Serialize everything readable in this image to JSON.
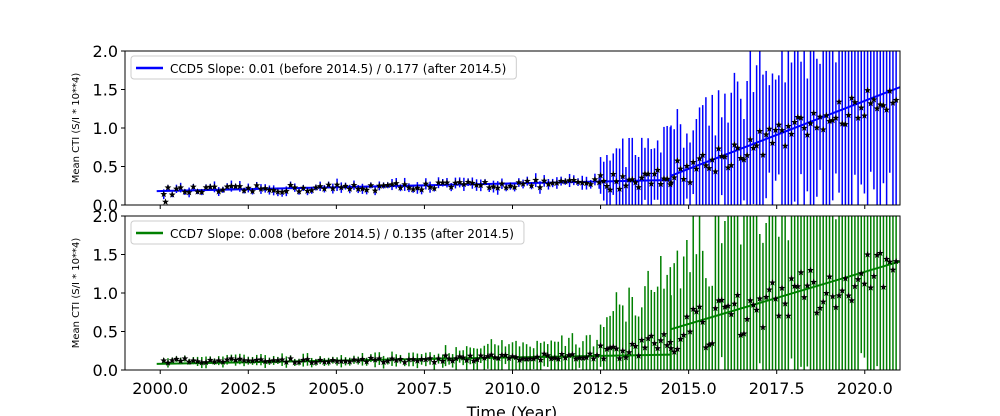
{
  "chart_data": [
    {
      "type": "scatter",
      "ylabel": "Mean CTI (S/I * 10**4)",
      "xlabel": "",
      "xlim": [
        1999.0,
        2021.0
      ],
      "ylim": [
        0.0,
        2.0
      ],
      "x_ticks": [
        "2000.0",
        "2002.5",
        "2005.0",
        "2007.5",
        "2010.0",
        "2012.5",
        "2015.0",
        "2017.5",
        "2020.0"
      ],
      "y_ticks": [
        "0.0",
        "0.5",
        "1.0",
        "1.5",
        "2.0"
      ],
      "show_x_tick_labels": false,
      "legend": {
        "label": "CCD5 Slope: 0.01 (before 2014.5) / 0.177 (after 2014.5)",
        "placement": "upper-left"
      },
      "color": "#0000ff",
      "fit_before": {
        "x": [
          1999.9,
          2014.5
        ],
        "y": [
          0.18,
          0.325
        ]
      },
      "fit_after": {
        "x": [
          2014.5,
          2021.0
        ],
        "y": [
          0.38,
          1.53
        ]
      },
      "outlier": {
        "x": 2000.15,
        "y": 0.04
      },
      "bands": [
        {
          "x0": 2000.1,
          "x1": 2012.5,
          "y0": 0.18,
          "y1": 0.29,
          "err0": 0.05,
          "err1": 0.07,
          "jitter": 0.05,
          "step": 0.12
        },
        {
          "x0": 2012.5,
          "x1": 2014.5,
          "y0": 0.29,
          "y1": 0.38,
          "err0": 0.32,
          "err1": 0.55,
          "jitter": 0.12,
          "step": 0.09
        },
        {
          "x0": 2014.5,
          "x1": 2020.9,
          "y0": 0.38,
          "y1": 1.45,
          "err0": 0.6,
          "err1": 1.3,
          "jitter": 0.18,
          "step": 0.09
        }
      ]
    },
    {
      "type": "scatter",
      "ylabel": "Mean CTI (S/I * 10**4)",
      "xlabel": "Time (Year)",
      "xlim": [
        1999.0,
        2021.0
      ],
      "ylim": [
        0.0,
        2.0
      ],
      "x_ticks": [
        "2000.0",
        "2002.5",
        "2005.0",
        "2007.5",
        "2010.0",
        "2012.5",
        "2015.0",
        "2017.5",
        "2020.0"
      ],
      "y_ticks": [
        "0.0",
        "0.5",
        "1.0",
        "1.5",
        "2.0"
      ],
      "show_x_tick_labels": true,
      "legend": {
        "label": "CCD7 Slope: 0.008 (before 2014.5) / 0.135 (after 2014.5)",
        "placement": "upper-left"
      },
      "color": "#008000",
      "fit_before": {
        "x": [
          1999.9,
          2014.5
        ],
        "y": [
          0.08,
          0.2
        ]
      },
      "fit_after": {
        "x": [
          2014.5,
          2021.0
        ],
        "y": [
          0.53,
          1.41
        ]
      },
      "outlier": null,
      "bands": [
        {
          "x0": 2000.1,
          "x1": 2008.1,
          "y0": 0.12,
          "y1": 0.13,
          "err0": 0.05,
          "err1": 0.08,
          "jitter": 0.03,
          "step": 0.12
        },
        {
          "x0": 2008.1,
          "x1": 2012.5,
          "y0": 0.15,
          "y1": 0.18,
          "err0": 0.12,
          "err1": 0.22,
          "jitter": 0.04,
          "step": 0.1
        },
        {
          "x0": 2012.5,
          "x1": 2014.5,
          "y0": 0.2,
          "y1": 0.38,
          "err0": 0.45,
          "err1": 0.85,
          "jitter": 0.12,
          "step": 0.09
        },
        {
          "x0": 2014.5,
          "x1": 2020.9,
          "y0": 0.45,
          "y1": 1.35,
          "err0": 0.9,
          "err1": 1.6,
          "jitter": 0.3,
          "step": 0.09
        }
      ]
    }
  ]
}
